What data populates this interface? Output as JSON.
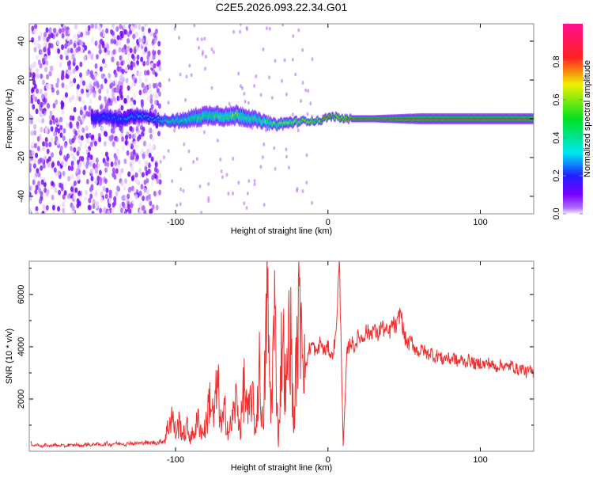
{
  "chart_data": [
    {
      "type": "heatmap",
      "title": "C2E5.2026.093.22.34.G01",
      "xlabel": "Height of straight line (km)",
      "ylabel": "Frequency (Hz)",
      "xlim": [
        -196,
        135
      ],
      "ylim": [
        -49,
        49
      ],
      "xticks": [
        "-100",
        "0",
        "100"
      ],
      "xtick_values": [
        -100,
        0,
        100
      ],
      "yticks": [
        "-40",
        "-20",
        "0",
        "20",
        "40"
      ],
      "ytick_values": [
        -40,
        -20,
        0,
        20,
        40
      ],
      "noise_region_x": [
        -196,
        -110
      ],
      "ridge": {
        "x": [
          -155,
          -145,
          -135,
          -125,
          -115,
          -105,
          -95,
          -85,
          -75,
          -65,
          -60,
          -55,
          -45,
          -35,
          -25,
          -15,
          -5,
          0,
          5,
          10,
          15,
          30,
          60,
          90,
          120,
          135
        ],
        "freq": [
          0,
          1,
          -1,
          2,
          0,
          -1,
          -1,
          1,
          2,
          1,
          2,
          1,
          -1,
          -3,
          -2,
          -1,
          -1,
          1,
          1,
          0,
          0,
          0,
          0,
          0,
          0,
          0
        ],
        "width": [
          4,
          4,
          4,
          4,
          3,
          3,
          4,
          5,
          5,
          5,
          5,
          5,
          4,
          3,
          3,
          2,
          2,
          2,
          2,
          2,
          2,
          2,
          3,
          3,
          3,
          3
        ],
        "amplitude": [
          0.2,
          0.25,
          0.3,
          0.3,
          0.35,
          0.5,
          0.5,
          0.55,
          0.55,
          0.6,
          0.65,
          0.55,
          0.55,
          0.65,
          0.7,
          0.75,
          0.8,
          0.9,
          0.85,
          0.9,
          0.9,
          0.9,
          0.9,
          0.9,
          0.9,
          0.9
        ]
      },
      "colorbar": {
        "label": "Normalized spectral amplitude",
        "ticks": [
          "0.0",
          "0.2",
          "0.4",
          "0.6",
          "0.8"
        ],
        "tick_values": [
          0,
          0.2,
          0.4,
          0.6,
          0.8
        ],
        "range": [
          0,
          1
        ]
      }
    },
    {
      "type": "line",
      "xlabel": "Height of straight line (km)",
      "ylabel": "SNR (10 * v/v)",
      "xlim": [
        -196,
        135
      ],
      "ylim": [
        0,
        7270
      ],
      "xticks": [
        "-100",
        "0",
        "100"
      ],
      "xtick_values": [
        -100,
        0,
        100
      ],
      "yticks": [
        "2000",
        "4000",
        "6000"
      ],
      "ytick_values": [
        2000,
        4000,
        6000
      ],
      "color": "#f03030",
      "series": [
        {
          "name": "SNR",
          "x_start": -195,
          "x_step": 2.5,
          "values": [
            300,
            220,
            260,
            180,
            240,
            200,
            260,
            210,
            230,
            190,
            250,
            220,
            260,
            200,
            240,
            280,
            220,
            300,
            240,
            260,
            300,
            240,
            320,
            280,
            300,
            260,
            340,
            280,
            320,
            300,
            360,
            300,
            340,
            320,
            360,
            400,
            900,
            1400,
            700,
            1100,
            600,
            900,
            500,
            800,
            1200,
            700,
            1000,
            2100,
            1200,
            2600,
            900,
            1500,
            700,
            1300,
            2000,
            800,
            2600,
            1200,
            2300,
            700,
            3100,
            600,
            6000,
            1500,
            5200,
            300,
            4800,
            2000,
            5300,
            900,
            4300,
            5900,
            3000,
            3900,
            4100,
            3700,
            4200,
            3800,
            4000,
            3600,
            4300,
            7200,
            200,
            3800,
            4200,
            4000,
            4400,
            4300,
            4600,
            4500,
            4700,
            4400,
            4800,
            4600,
            4500,
            4900,
            4700,
            5400,
            4400,
            4100,
            4200,
            3900,
            3800,
            3900,
            3700,
            3800,
            3600,
            3700,
            3500,
            3600,
            3500,
            3600,
            3400,
            3500,
            3400,
            3500,
            3400,
            3300,
            3400,
            3300,
            3400,
            3300,
            3200,
            3300,
            3300,
            3200,
            3300,
            3200,
            3100,
            3200,
            3000,
            3100,
            3000
          ]
        }
      ]
    }
  ]
}
